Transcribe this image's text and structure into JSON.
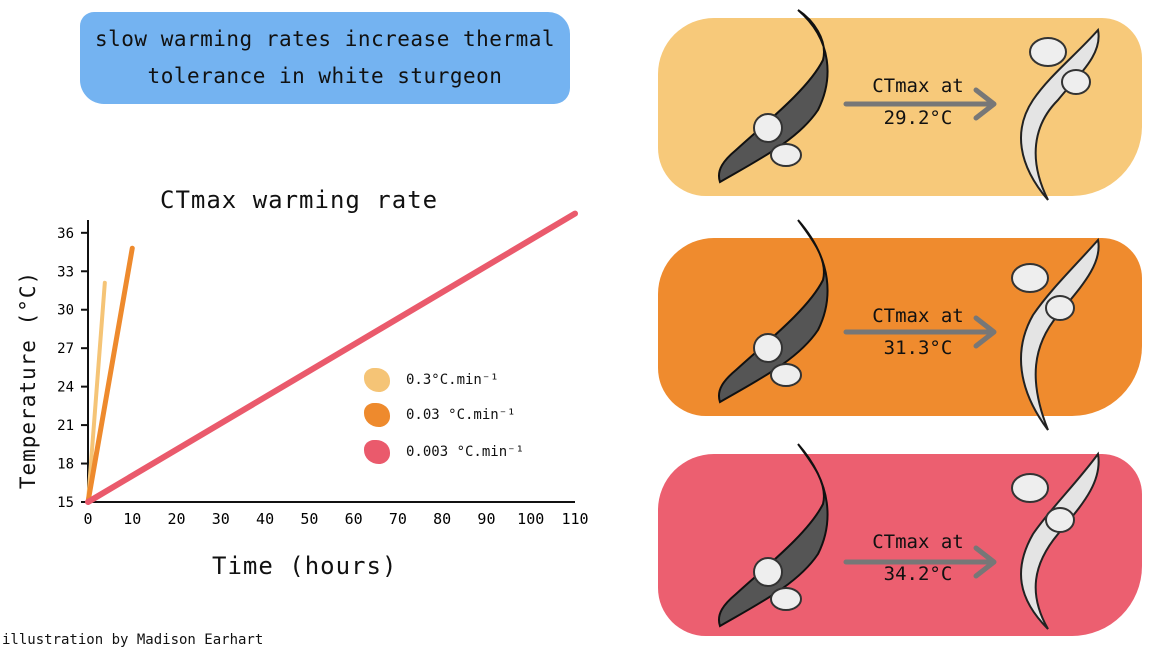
{
  "banner": {
    "line1": "slow warming rates increase thermal",
    "line2": "tolerance in white sturgeon"
  },
  "chart_data": {
    "type": "line",
    "title": "CTmax warming rate",
    "xlabel": "Time (hours)",
    "ylabel": "Temperature (°C)",
    "xlim": [
      0,
      110
    ],
    "ylim": [
      15,
      37
    ],
    "x_ticks": [
      0,
      10,
      20,
      30,
      40,
      50,
      60,
      70,
      80,
      90,
      100,
      110
    ],
    "y_ticks": [
      15,
      18,
      21,
      24,
      27,
      30,
      33,
      36
    ],
    "legend_position": "center",
    "series": [
      {
        "name": "0.3°C.min⁻¹",
        "color": "#f5c476",
        "x": [
          0,
          3.8
        ],
        "y": [
          15,
          32.1
        ]
      },
      {
        "name": "0.03 °C.min⁻¹",
        "color": "#ee8a2d",
        "x": [
          0,
          10
        ],
        "y": [
          15,
          34.8
        ]
      },
      {
        "name": "0.003 °C.min⁻¹",
        "color": "#ea5a6c",
        "x": [
          0,
          110
        ],
        "y": [
          15,
          37.5
        ]
      }
    ]
  },
  "panels": [
    {
      "color": "#f7c97a",
      "label": "CTmax at",
      "value": "29.2°C"
    },
    {
      "color": "#ef8b2e",
      "label": "CTmax at",
      "value": "31.3°C"
    },
    {
      "color": "#ec5f70",
      "label": "CTmax at",
      "value": "34.2°C"
    }
  ],
  "credit": "illustration by Madison Earhart"
}
